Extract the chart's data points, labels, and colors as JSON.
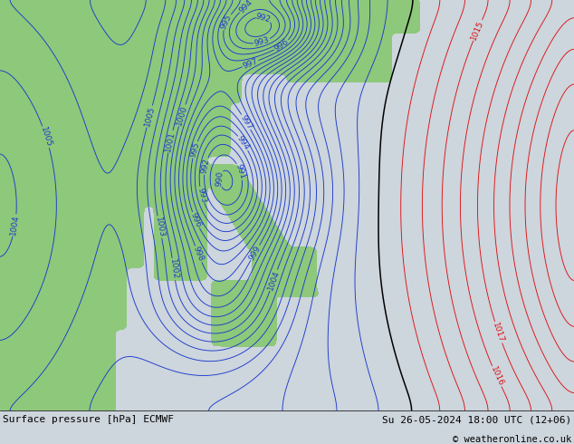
{
  "title_left": "Surface pressure [hPa] ECMWF",
  "title_right": "Su 26-05-2024 18:00 UTC (12+06)",
  "copyright": "© weatheronline.co.uk",
  "bg_color": "#cdd5dd",
  "land_color": "#8ec87a",
  "figsize": [
    6.34,
    4.9
  ],
  "dpi": 100,
  "blue_color": "#1a3acc",
  "red_color": "#dd1111",
  "black_color": "#000000",
  "font_size_labels": 6.5,
  "font_size_bottom": 8.0,
  "levels_blue_min": 984,
  "levels_blue_max": 1011,
  "levels_red_min": 1013,
  "levels_red_max": 1025,
  "level_black": 1012
}
